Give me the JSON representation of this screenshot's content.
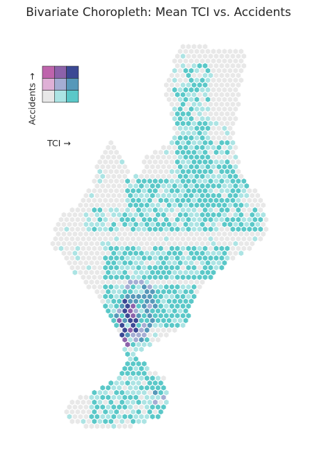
{
  "title": "Bivariate Choropleth: Mean TCI vs. Accidents",
  "legend": {
    "x_label": "TCI →",
    "y_label": "Accidents →",
    "palette": [
      [
        "#e8e8e8",
        "#ace4e4",
        "#5ac8c8"
      ],
      [
        "#dfb0d6",
        "#a5add3",
        "#5698b9"
      ],
      [
        "#be64ac",
        "#8c62aa",
        "#3b4994"
      ]
    ]
  },
  "map": {
    "empty_color": "#e8e8e8",
    "cell_edge_color": "#ffffff"
  }
}
